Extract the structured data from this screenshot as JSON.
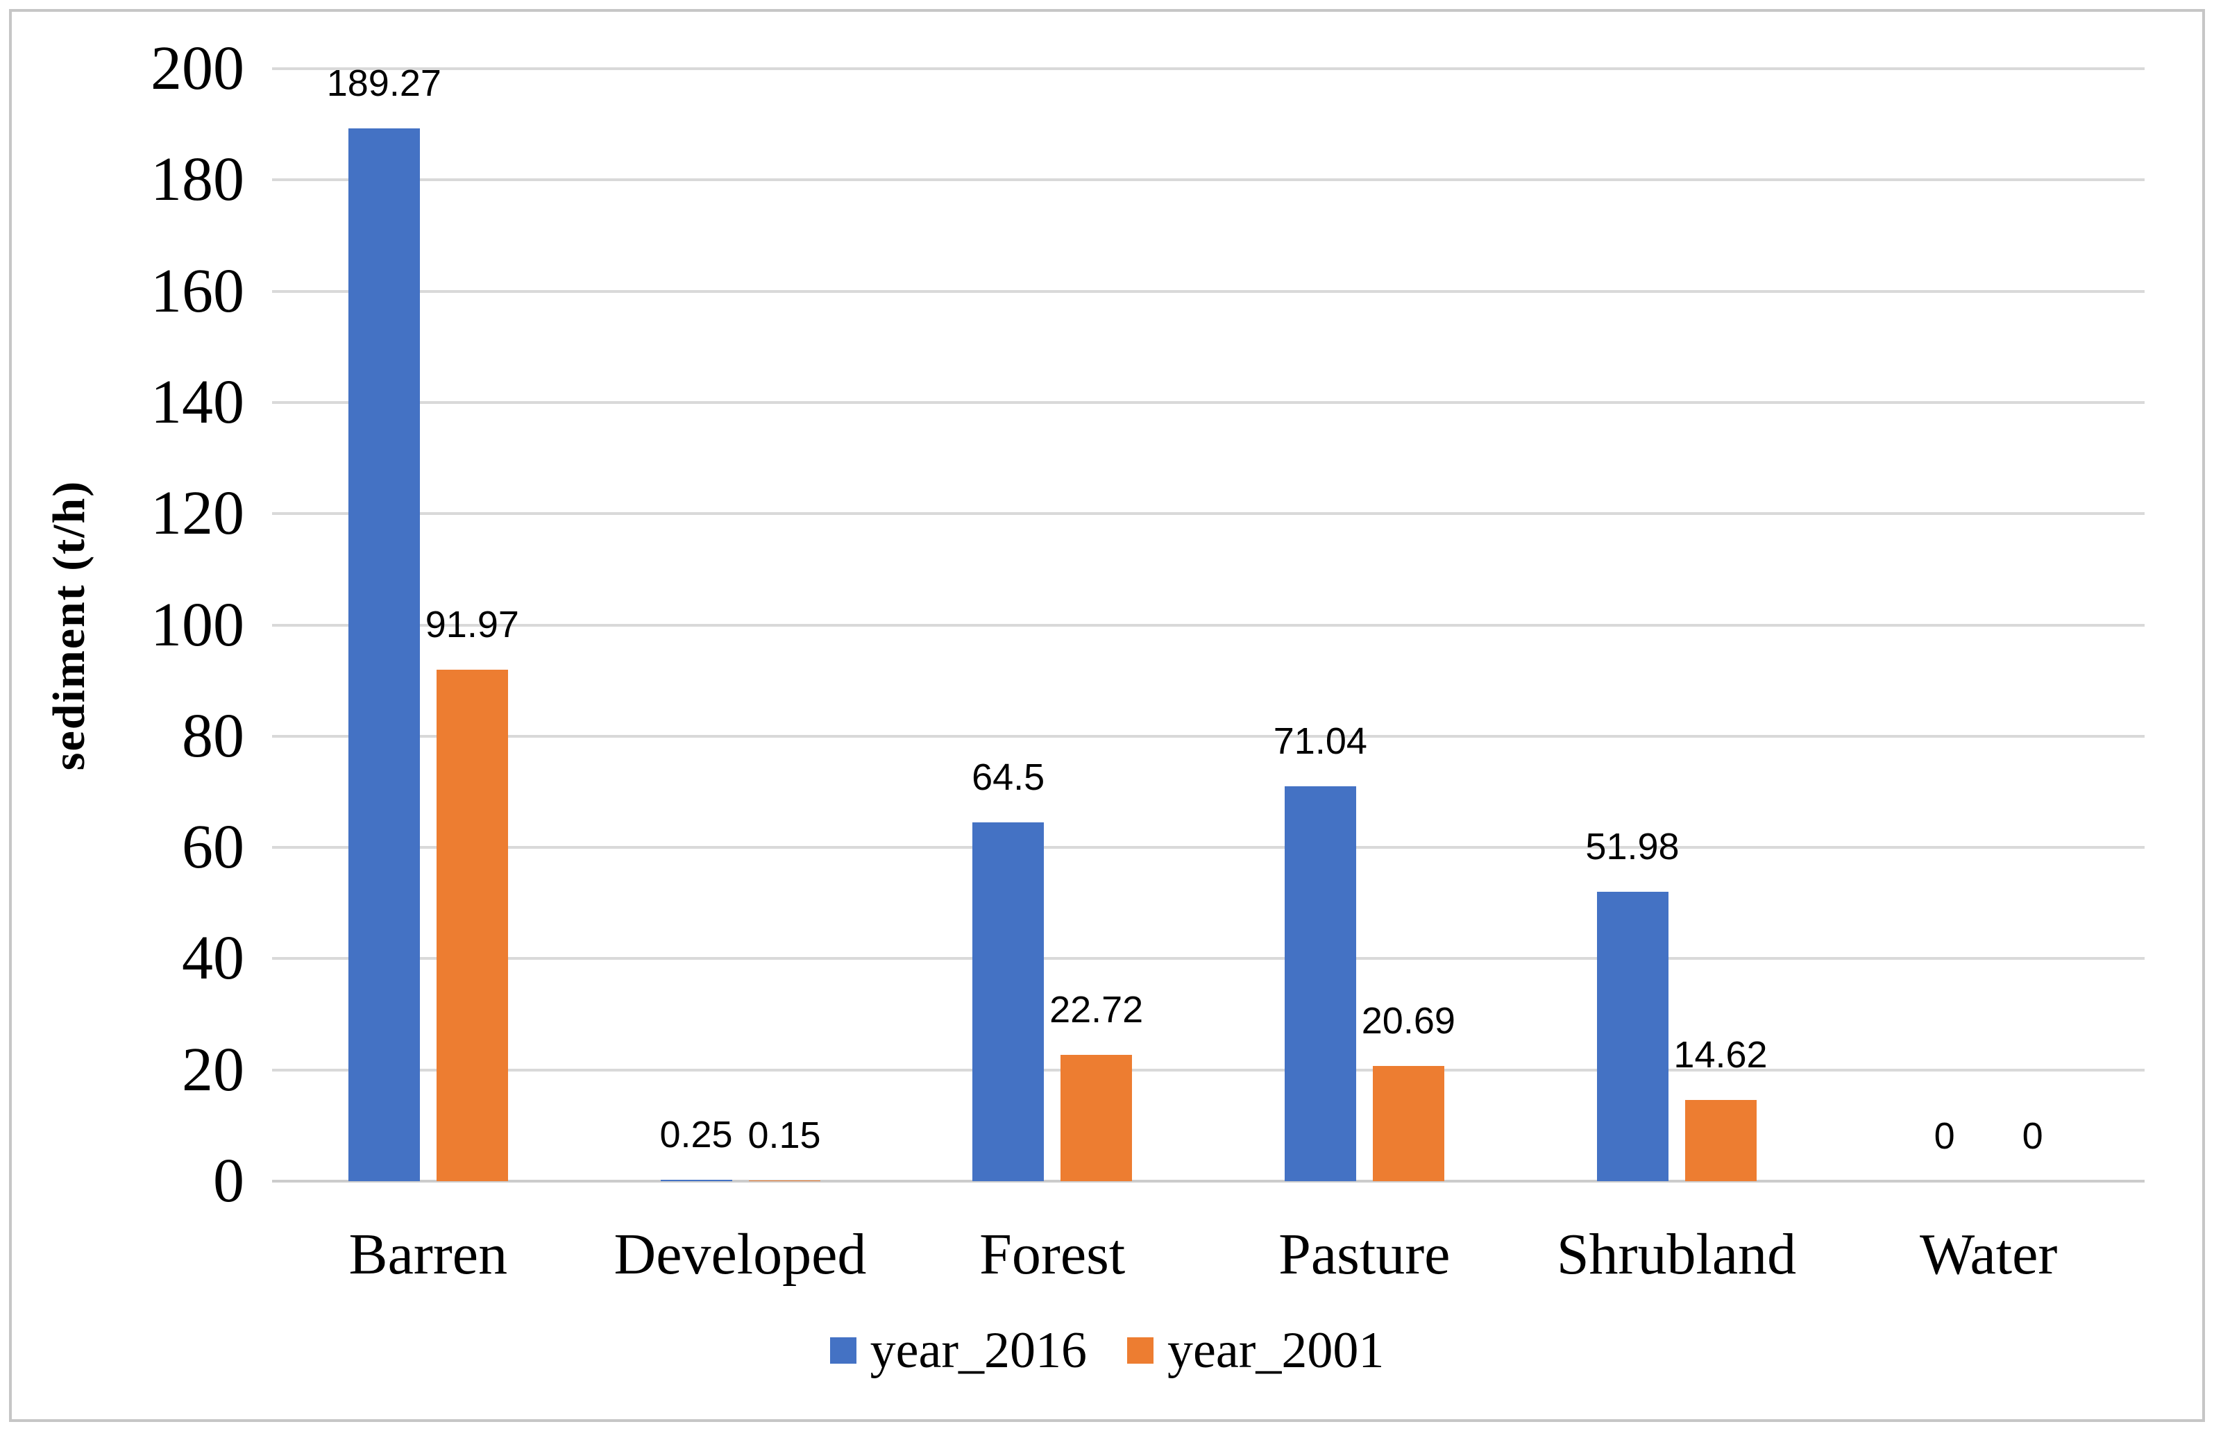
{
  "figure": {
    "background": "#ffffff",
    "border_color": "#c6c6c6"
  },
  "chart_data": {
    "type": "bar",
    "title": "",
    "xlabel": "",
    "ylabel": "sediment (t/h)",
    "categories": [
      "Barren",
      "Developed",
      "Forest",
      "Pasture",
      "Shrubland",
      "Water"
    ],
    "series": [
      {
        "name": "year_2016",
        "color": "#4472C4",
        "values": [
          189.27,
          0.25,
          64.5,
          71.04,
          51.98,
          0
        ],
        "labels": [
          "189.27",
          "0.25",
          "64.5",
          "71.04",
          "51.98",
          "0"
        ]
      },
      {
        "name": "year_2001",
        "color": "#ED7D31",
        "values": [
          91.97,
          0.15,
          22.72,
          20.69,
          14.62,
          0
        ],
        "labels": [
          "91.97",
          "0.15",
          "22.72",
          "20.69",
          "14.62",
          "0"
        ]
      }
    ],
    "ylim": [
      0,
      200
    ],
    "ytick_step": 20,
    "yticks": [
      "0",
      "20",
      "40",
      "60",
      "80",
      "100",
      "120",
      "140",
      "160",
      "180",
      "200"
    ],
    "grid": true,
    "gridline_color": "#d9d9d9",
    "axis_line_color": "#cccccc",
    "data_label_color": "#000000",
    "legend_position": "bottom"
  }
}
